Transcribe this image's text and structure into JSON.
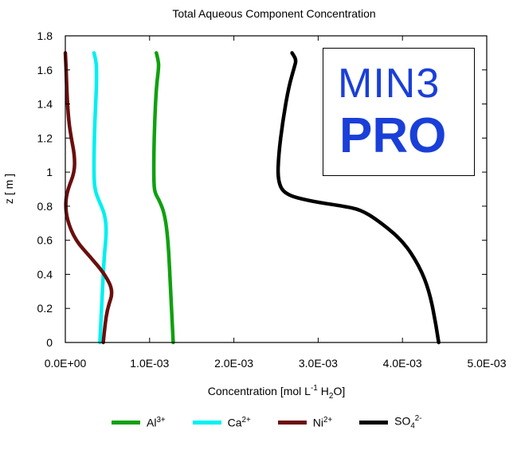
{
  "chart_data": {
    "type": "line",
    "title": "Total Aqueous Component Concentration",
    "xlabel": {
      "main": "Concentration [mol L",
      "sup": "-1",
      "mid": " H",
      "sub": "2",
      "end": "O]"
    },
    "ylabel": "z [ m ]",
    "xlim": [
      0,
      0.005
    ],
    "ylim": [
      0,
      1.8
    ],
    "x_ticks": [
      0,
      0.001,
      0.002,
      0.003,
      0.004,
      0.005
    ],
    "x_tick_labels": [
      "0.0E+00",
      "1.0E-03",
      "2.0E-03",
      "3.0E-03",
      "4.0E-03",
      "5.0E-03"
    ],
    "y_ticks": [
      0,
      0.2,
      0.4,
      0.6,
      0.8,
      1.0,
      1.2,
      1.4,
      1.6,
      1.8
    ],
    "y_tick_labels": [
      "0",
      "0.2",
      "0.4",
      "0.6",
      "0.8",
      "1",
      "1.2",
      "1.4",
      "1.6",
      "1.8"
    ],
    "series": [
      {
        "name": "Al",
        "charge": "3+",
        "color": "#10a010",
        "points": [
          [
            0.00128,
            0
          ],
          [
            0.00127,
            0.1
          ],
          [
            0.00125,
            0.3
          ],
          [
            0.00122,
            0.6
          ],
          [
            0.00118,
            0.75
          ],
          [
            0.00112,
            0.83
          ],
          [
            0.00106,
            0.88
          ],
          [
            0.00105,
            0.95
          ],
          [
            0.00105,
            1.1
          ],
          [
            0.00106,
            1.3
          ],
          [
            0.00108,
            1.5
          ],
          [
            0.00111,
            1.62
          ],
          [
            0.0011,
            1.66
          ],
          [
            0.00108,
            1.7
          ]
        ]
      },
      {
        "name": "Ca",
        "charge": "2+",
        "color": "#00f0f0",
        "points": [
          [
            0.00041,
            0
          ],
          [
            0.00042,
            0.1
          ],
          [
            0.00044,
            0.3
          ],
          [
            0.00046,
            0.5
          ],
          [
            0.00049,
            0.65
          ],
          [
            0.00047,
            0.75
          ],
          [
            0.00041,
            0.82
          ],
          [
            0.00036,
            0.88
          ],
          [
            0.00034,
            0.95
          ],
          [
            0.00034,
            1.1
          ],
          [
            0.00035,
            1.3
          ],
          [
            0.00037,
            1.5
          ],
          [
            0.00037,
            1.62
          ],
          [
            0.00036,
            1.66
          ],
          [
            0.00034,
            1.7
          ]
        ]
      },
      {
        "name": "Ni",
        "charge": "2+",
        "color": "#6b0e0e",
        "points": [
          [
            0.00045,
            0
          ],
          [
            0.00047,
            0.1
          ],
          [
            0.0005,
            0.2
          ],
          [
            0.00057,
            0.3
          ],
          [
            0.00047,
            0.4
          ],
          [
            0.0003,
            0.5
          ],
          [
            0.00012,
            0.6
          ],
          [
            2e-05,
            0.72
          ],
          [
            0,
            0.82
          ],
          [
            3e-05,
            0.9
          ],
          [
            0.00011,
            1.0
          ],
          [
            0.00011,
            1.1
          ],
          [
            7e-05,
            1.2
          ],
          [
            4e-05,
            1.3
          ],
          [
            2e-05,
            1.45
          ],
          [
            1e-05,
            1.6
          ],
          [
            0,
            1.7
          ]
        ]
      },
      {
        "name": "SO",
        "sub": "4",
        "charge": "2-",
        "color": "#000000",
        "points": [
          [
            0.00443,
            0
          ],
          [
            0.0044,
            0.1
          ],
          [
            0.00432,
            0.3
          ],
          [
            0.0042,
            0.45
          ],
          [
            0.004,
            0.6
          ],
          [
            0.0037,
            0.72
          ],
          [
            0.0035,
            0.78
          ],
          [
            0.0033,
            0.8
          ],
          [
            0.0029,
            0.83
          ],
          [
            0.0026,
            0.87
          ],
          [
            0.00252,
            0.95
          ],
          [
            0.00253,
            1.1
          ],
          [
            0.00258,
            1.3
          ],
          [
            0.00265,
            1.5
          ],
          [
            0.00272,
            1.62
          ],
          [
            0.00274,
            1.66
          ],
          [
            0.00269,
            1.7
          ]
        ]
      }
    ]
  },
  "logo": {
    "line1": "MIN3",
    "line2": "PRO"
  }
}
